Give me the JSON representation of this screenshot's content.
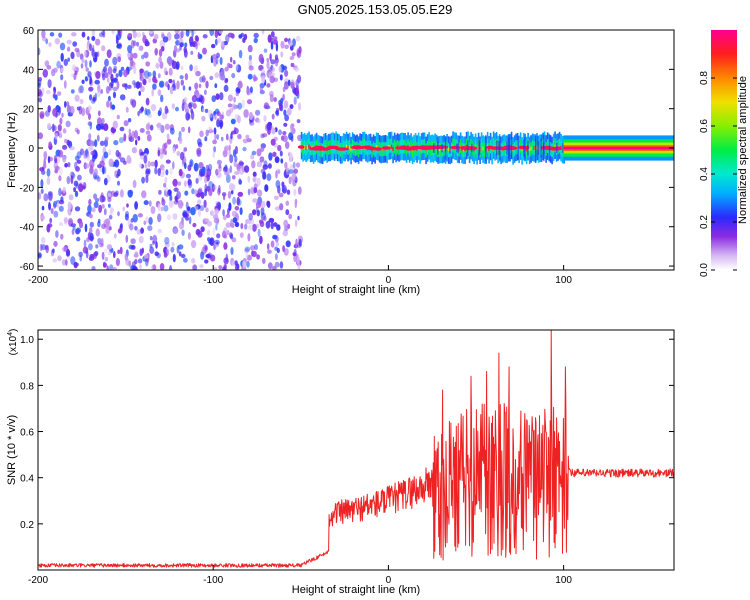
{
  "title": "GN05.2025.153.05.05.E29",
  "chart_data": [
    {
      "type": "heatmap",
      "xlabel": "Height of straight line (km)",
      "ylabel": "Frequency (Hz)",
      "xlim": [
        -200,
        163
      ],
      "ylim": [
        -62,
        60
      ],
      "xticks": [
        -200,
        -100,
        0,
        100
      ],
      "yticks": [
        -60,
        -40,
        -20,
        0,
        20,
        40,
        60
      ],
      "colorbar": {
        "label": "Normalized spectral amplitude",
        "ticks": [
          0.0,
          0.2,
          0.4,
          0.6,
          0.8
        ],
        "range": [
          0,
          1
        ],
        "colormap": "white-purple-blue-cyan-green-yellow-red-magenta"
      },
      "regions": [
        {
          "x_range": [
            -200,
            -50
          ],
          "description": "broadband noise, all frequencies",
          "level": 0.1
        },
        {
          "x_range": [
            -50,
            100
          ],
          "center_frequency": 0,
          "band_halfwidth": 5,
          "peak_level": 0.95
        },
        {
          "x_range": [
            100,
            163
          ],
          "center_frequency": 0,
          "band_halfwidth": 2,
          "peak_level": 1.0
        }
      ]
    },
    {
      "type": "line",
      "xlabel": "Height of straight line (km)",
      "ylabel": "SNR (10 * v/v)",
      "exponent_label": "(x10",
      "exponent_value": "4",
      "exponent_close": ")",
      "xlim": [
        -200,
        163
      ],
      "ylim": [
        0,
        1.04
      ],
      "xticks": [
        -200,
        -100,
        0,
        100
      ],
      "yticks": [
        0.2,
        0.4,
        0.6,
        0.8,
        1.0
      ],
      "line_color": "#ee2222",
      "envelope": [
        {
          "x": -200,
          "y": 0.02
        },
        {
          "x": -50,
          "y": 0.02
        },
        {
          "x": -34,
          "y": 0.08
        },
        {
          "x": -34,
          "y": 0.24
        },
        {
          "x": -20,
          "y": 0.26
        },
        {
          "x": 0,
          "y": 0.3
        },
        {
          "x": 20,
          "y": 0.36
        },
        {
          "x": 40,
          "y": 0.44
        },
        {
          "x": 60,
          "y": 0.48
        },
        {
          "x": 80,
          "y": 0.46
        },
        {
          "x": 100,
          "y": 0.46
        },
        {
          "x": 105,
          "y": 0.42
        },
        {
          "x": 163,
          "y": 0.42
        }
      ],
      "peaks": [
        {
          "x": 31,
          "y": 0.78
        },
        {
          "x": 47,
          "y": 0.84
        },
        {
          "x": 56,
          "y": 0.86
        },
        {
          "x": 63,
          "y": 0.94
        },
        {
          "x": 69,
          "y": 0.88
        },
        {
          "x": 84,
          "y": 0.66
        },
        {
          "x": 93,
          "y": 1.04
        },
        {
          "x": 101,
          "y": 0.88
        }
      ]
    }
  ]
}
